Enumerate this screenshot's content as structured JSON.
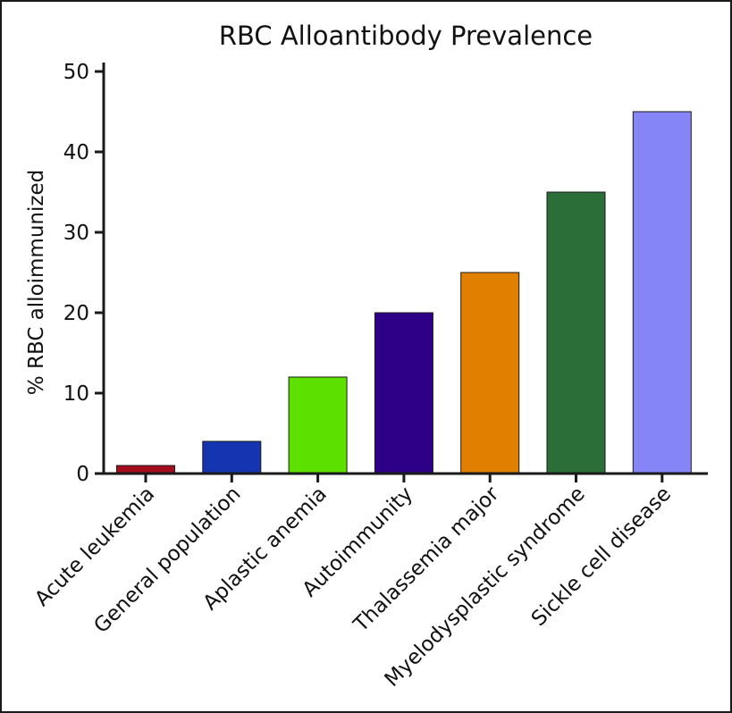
{
  "chart_data": {
    "type": "bar",
    "title": "RBC Alloantibody Prevalence",
    "xlabel": "",
    "ylabel": "% RBC alloimmunized",
    "ylim": [
      0,
      50
    ],
    "yticks": [
      0,
      10,
      20,
      30,
      40,
      50
    ],
    "grid": false,
    "categories": [
      "Acute leukemia",
      "General population",
      "Aplastic anemia",
      "Autoimmunity",
      "Thalassemia major",
      "Myelodysplastic syndrome",
      "Sickle cell disease"
    ],
    "values": [
      1,
      4,
      12,
      20,
      25,
      35,
      45
    ],
    "colors": [
      "#A50D1E",
      "#1535B0",
      "#5BE000",
      "#2E0088",
      "#E07F00",
      "#2B6E37",
      "#8585F7"
    ]
  }
}
